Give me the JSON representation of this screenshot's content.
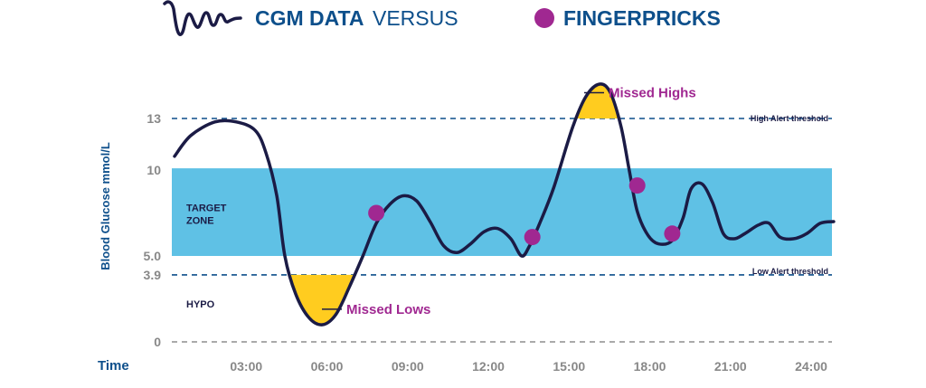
{
  "legend": {
    "cgm_label": "CGM DATA",
    "versus_label": "VERSUS",
    "fingerprick_label": "FINGERPRICKS"
  },
  "colors": {
    "navy": "#1b1b45",
    "brand_blue": "#0d4f8b",
    "target_zone": "#5fc1e5",
    "magenta": "#a02891",
    "missed_fill": "#ffcc1f",
    "tick_gray": "#888888"
  },
  "chart_data": {
    "type": "line",
    "xlabel": "Time",
    "ylabel": "Blood Glucose mmol/L",
    "x_unit": "hours",
    "x_ticks": [
      {
        "value": 3,
        "label": "03:00"
      },
      {
        "value": 6,
        "label": "06:00"
      },
      {
        "value": 9,
        "label": "09:00"
      },
      {
        "value": 12,
        "label": "12:00"
      },
      {
        "value": 15,
        "label": "15:00"
      },
      {
        "value": 18,
        "label": "18:00"
      },
      {
        "value": 21,
        "label": "21:00"
      },
      {
        "value": 24,
        "label": "24:00"
      }
    ],
    "y_ticks": [
      {
        "value": 0,
        "label": "0"
      },
      {
        "value": 3.9,
        "label": "3.9"
      },
      {
        "value": 5.0,
        "label": "5.0"
      },
      {
        "value": 10,
        "label": "10"
      },
      {
        "value": 13,
        "label": "13"
      }
    ],
    "xlim": [
      0,
      24.5
    ],
    "ylim": [
      0,
      16
    ],
    "bands": [
      {
        "name": "target",
        "label_lines": [
          "TARGET",
          "ZONE"
        ],
        "from": 5.0,
        "to": 10.1
      },
      {
        "name": "hypo",
        "label": "HYPO",
        "from": 0,
        "to": 3.9
      }
    ],
    "thresholds": [
      {
        "value": 13,
        "label": "High Alert threshold"
      },
      {
        "value": 3.9,
        "label": "Low Alert threshold"
      },
      {
        "value": 0,
        "label": ""
      }
    ],
    "annotations": {
      "missed_highs": "Missed Highs",
      "missed_lows": "Missed Lows"
    },
    "series": [
      {
        "kind": "cgm",
        "points": [
          [
            0.0,
            10.8
          ],
          [
            0.6,
            12.0
          ],
          [
            1.5,
            12.8
          ],
          [
            2.3,
            12.8
          ],
          [
            3.0,
            12.3
          ],
          [
            3.4,
            11.0
          ],
          [
            3.8,
            8.5
          ],
          [
            4.1,
            5.0
          ],
          [
            4.5,
            2.8
          ],
          [
            5.0,
            1.4
          ],
          [
            5.5,
            1.0
          ],
          [
            6.0,
            1.6
          ],
          [
            6.5,
            3.2
          ],
          [
            7.0,
            5.0
          ],
          [
            7.5,
            6.9
          ],
          [
            8.0,
            8.0
          ],
          [
            8.5,
            8.5
          ],
          [
            9.0,
            8.2
          ],
          [
            9.5,
            7.0
          ],
          [
            10.0,
            5.6
          ],
          [
            10.5,
            5.2
          ],
          [
            11.0,
            5.7
          ],
          [
            11.5,
            6.4
          ],
          [
            12.0,
            6.6
          ],
          [
            12.5,
            6.0
          ],
          [
            12.9,
            5.0
          ],
          [
            13.2,
            5.6
          ],
          [
            13.6,
            7.0
          ],
          [
            14.1,
            9.0
          ],
          [
            14.8,
            12.5
          ],
          [
            15.3,
            14.3
          ],
          [
            15.8,
            15.0
          ],
          [
            16.2,
            14.5
          ],
          [
            16.6,
            12.5
          ],
          [
            16.9,
            10.0
          ],
          [
            17.2,
            7.6
          ],
          [
            17.6,
            6.2
          ],
          [
            18.0,
            5.7
          ],
          [
            18.5,
            5.9
          ],
          [
            18.9,
            7.2
          ],
          [
            19.2,
            8.9
          ],
          [
            19.6,
            9.2
          ],
          [
            20.0,
            8.1
          ],
          [
            20.4,
            6.3
          ],
          [
            20.8,
            6.0
          ],
          [
            21.2,
            6.3
          ],
          [
            21.7,
            6.8
          ],
          [
            22.1,
            6.9
          ],
          [
            22.5,
            6.1
          ],
          [
            23.0,
            6.0
          ],
          [
            23.5,
            6.3
          ],
          [
            24.0,
            6.9
          ],
          [
            24.5,
            7.0
          ]
        ]
      },
      {
        "kind": "fingerprick",
        "points": [
          [
            7.5,
            7.5
          ],
          [
            13.3,
            6.1
          ],
          [
            17.2,
            9.1
          ],
          [
            18.5,
            6.3
          ]
        ]
      }
    ]
  }
}
